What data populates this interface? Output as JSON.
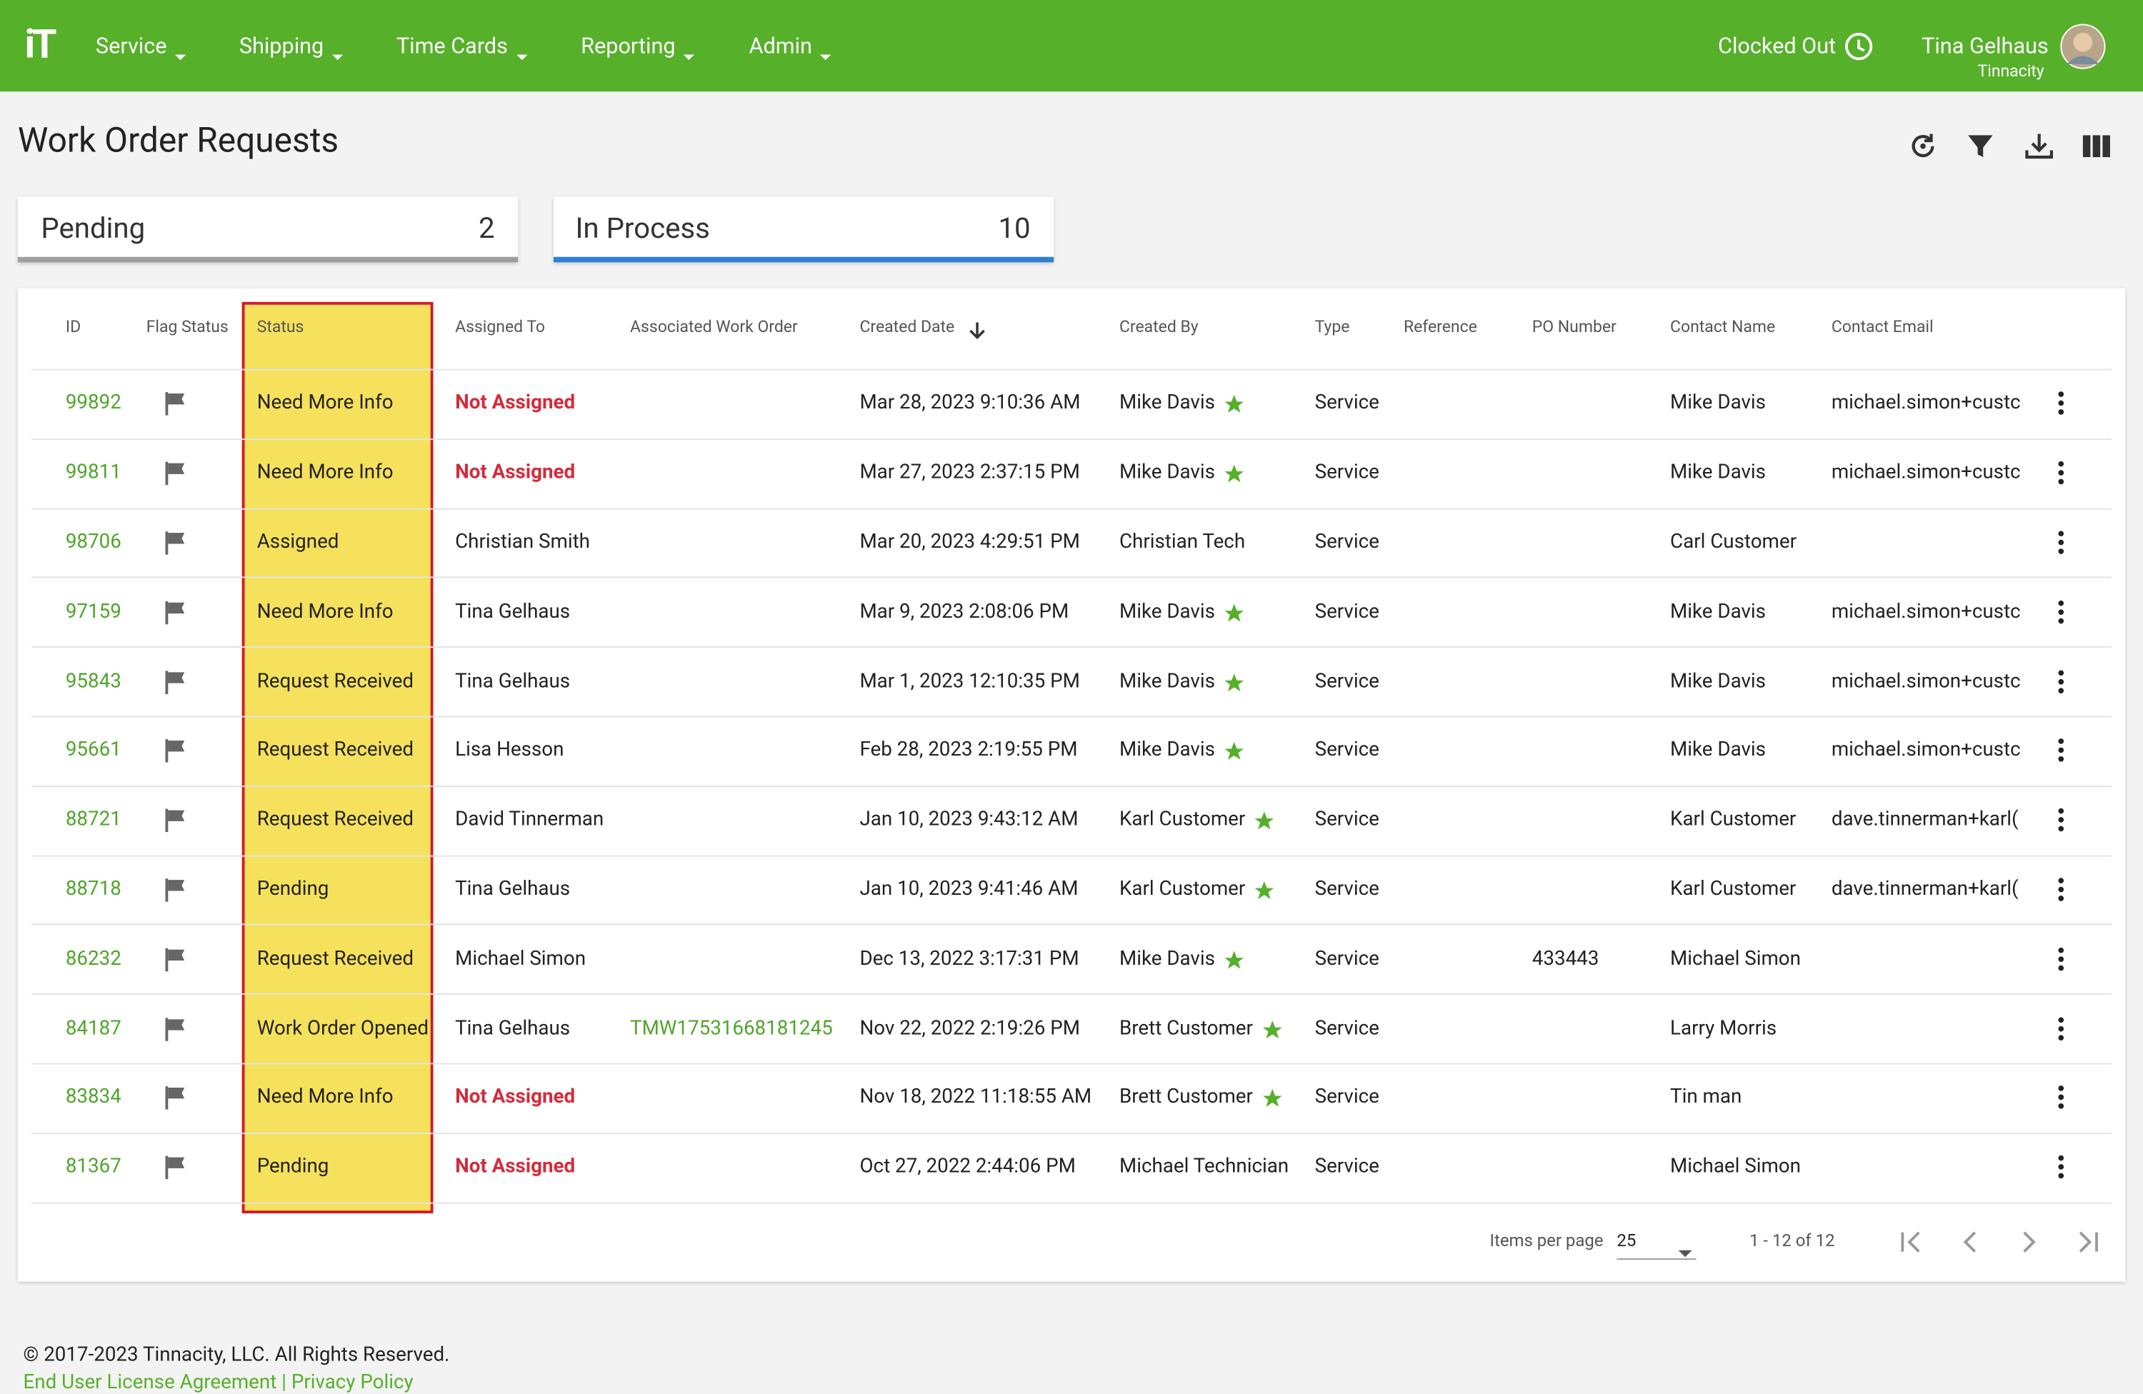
{
  "nav": {
    "logo": "iT",
    "items": [
      "Service",
      "Shipping",
      "Time Cards",
      "Reporting",
      "Admin"
    ],
    "clock_status": "Clocked Out",
    "user_name": "Tina Gelhaus",
    "user_company": "Tinnacity"
  },
  "header": {
    "title": "Work Order Requests"
  },
  "cards": [
    {
      "label": "Pending",
      "count": 2
    },
    {
      "label": "In Process",
      "count": 10
    }
  ],
  "table": {
    "columns": [
      "ID",
      "Flag Status",
      "Status",
      "Assigned To",
      "Associated Work Order",
      "Created Date",
      "Created By",
      "Type",
      "Reference",
      "PO Number",
      "Contact Name",
      "Contact Email"
    ],
    "rows": [
      {
        "id": "99892",
        "status": "Need More Info",
        "assigned_to": "Not Assigned",
        "unassigned": true,
        "created_date": "Mar 28, 2023 9:10:36 AM",
        "created_by": "Mike Davis",
        "starred": true,
        "type": "Service",
        "contact_name": "Mike Davis",
        "contact_email": "michael.simon+custc"
      },
      {
        "id": "99811",
        "status": "Need More Info",
        "assigned_to": "Not Assigned",
        "unassigned": true,
        "created_date": "Mar 27, 2023 2:37:15 PM",
        "created_by": "Mike Davis",
        "starred": true,
        "type": "Service",
        "contact_name": "Mike Davis",
        "contact_email": "michael.simon+custc"
      },
      {
        "id": "98706",
        "status": "Assigned",
        "assigned_to": "Christian Smith",
        "created_date": "Mar 20, 2023 4:29:51 PM",
        "created_by": "Christian Tech",
        "starred": false,
        "type": "Service",
        "contact_name": "Carl Customer"
      },
      {
        "id": "97159",
        "status": "Need More Info",
        "assigned_to": "Tina Gelhaus",
        "created_date": "Mar 9, 2023 2:08:06 PM",
        "created_by": "Mike Davis",
        "starred": true,
        "type": "Service",
        "contact_name": "Mike Davis",
        "contact_email": "michael.simon+custc"
      },
      {
        "id": "95843",
        "status": "Request Received",
        "assigned_to": "Tina Gelhaus",
        "created_date": "Mar 1, 2023 12:10:35 PM",
        "created_by": "Mike Davis",
        "starred": true,
        "type": "Service",
        "contact_name": "Mike Davis",
        "contact_email": "michael.simon+custc"
      },
      {
        "id": "95661",
        "status": "Request Received",
        "assigned_to": "Lisa Hesson",
        "created_date": "Feb 28, 2023 2:19:55 PM",
        "created_by": "Mike Davis",
        "starred": true,
        "type": "Service",
        "contact_name": "Mike Davis",
        "contact_email": "michael.simon+custc"
      },
      {
        "id": "88721",
        "status": "Request Received",
        "assigned_to": "David Tinnerman",
        "created_date": "Jan 10, 2023 9:43:12 AM",
        "created_by": "Karl Customer",
        "starred": true,
        "type": "Service",
        "contact_name": "Karl Customer",
        "contact_email": "dave.tinnerman+karl("
      },
      {
        "id": "88718",
        "status": "Pending",
        "assigned_to": "Tina Gelhaus",
        "created_date": "Jan 10, 2023 9:41:46 AM",
        "created_by": "Karl Customer",
        "starred": true,
        "type": "Service",
        "contact_name": "Karl Customer",
        "contact_email": "dave.tinnerman+karl("
      },
      {
        "id": "86232",
        "status": "Request Received",
        "assigned_to": "Michael Simon",
        "created_date": "Dec 13, 2022 3:17:31 PM",
        "created_by": "Mike Davis",
        "starred": true,
        "type": "Service",
        "po_number": "433443",
        "contact_name": "Michael Simon"
      },
      {
        "id": "84187",
        "status": "Work Order Opened",
        "assigned_to": "Tina Gelhaus",
        "work_order": "TMW17531668181245",
        "created_date": "Nov 22, 2022 2:19:26 PM",
        "created_by": "Brett Customer",
        "starred": true,
        "type": "Service",
        "contact_name": "Larry Morris"
      },
      {
        "id": "83834",
        "status": "Need More Info",
        "assigned_to": "Not Assigned",
        "unassigned": true,
        "created_date": "Nov 18, 2022 11:18:55 AM",
        "created_by": "Brett Customer",
        "starred": true,
        "type": "Service",
        "contact_name": "Tin man"
      },
      {
        "id": "81367",
        "status": "Pending",
        "assigned_to": "Not Assigned",
        "unassigned": true,
        "created_date": "Oct 27, 2022 2:44:06 PM",
        "created_by": "Michael Technician",
        "starred": false,
        "type": "Service",
        "contact_name": "Michael Simon"
      }
    ]
  },
  "pagination": {
    "items_per_page_label": "Items per page",
    "items_per_page": "25",
    "range": "1 - 12 of 12"
  },
  "footer": {
    "copyright": "© 2017-2023 Tinnacity, LLC. All Rights Reserved.",
    "links": [
      "End User License Agreement",
      "Privacy Policy"
    ]
  }
}
